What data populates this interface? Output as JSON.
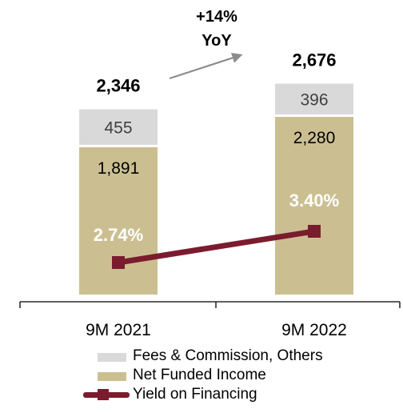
{
  "colors": {
    "fees": "#d9d9d9",
    "funded": "#cbbf91",
    "yield_line": "#7b1c2e",
    "axis": "#000000",
    "arrow": "#8c8c8c"
  },
  "chart_data": {
    "type": "bar",
    "stacked": true,
    "categories": [
      "9M 2021",
      "9M 2022"
    ],
    "series": [
      {
        "name": "Net Funded Income",
        "values": [
          1891,
          2280
        ],
        "value_labels": [
          "1,891",
          "2,280"
        ],
        "color": "#cbbf91"
      },
      {
        "name": "Fees & Commission, Others",
        "values": [
          455,
          396
        ],
        "value_labels": [
          "455",
          "396"
        ],
        "color": "#d9d9d9"
      }
    ],
    "totals": [
      2346,
      2676
    ],
    "total_labels": [
      "2,346",
      "2,676"
    ],
    "line_series": {
      "name": "Yield on Financing",
      "values": [
        2.74,
        3.4
      ],
      "value_labels": [
        "2.74%",
        "3.40%"
      ],
      "color": "#7b1c2e"
    },
    "annotation": {
      "line1": "+14%",
      "line2": "YoY"
    },
    "legend_position": "bottom",
    "grid": false
  }
}
